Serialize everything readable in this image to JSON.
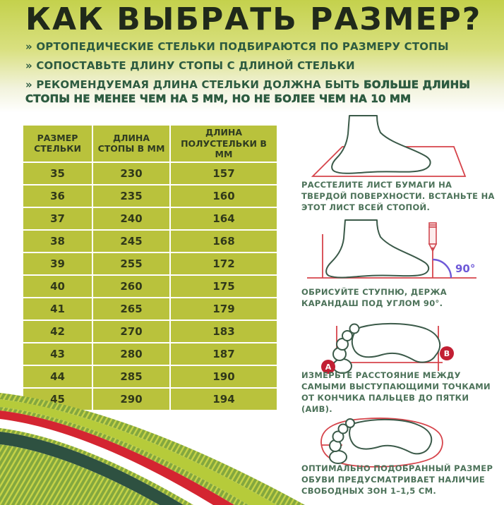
{
  "header": {
    "title": "КАК ВЫБРАТЬ РАЗМЕР?",
    "bullets": [
      {
        "marker": "»",
        "text": "ОРТОПЕДИЧЕСКИЕ СТЕЛЬКИ ПОДБИРАЮТСЯ ПО РАЗМЕРУ СТОПЫ"
      },
      {
        "marker": "»",
        "text": "СОПОСТАВЬТЕ ДЛИНУ СТОПЫ С ДЛИНОЙ СТЕЛЬКИ"
      },
      {
        "marker": "»",
        "text": "РЕКОМЕНДУЕМАЯ ДЛИНА СТЕЛЬКИ ДОЛЖНА БЫТЬ",
        "bold_text": "БОЛЬШЕ ДЛИНЫ СТОПЫ НЕ МЕНЕЕ ЧЕМ НА 5 ММ, НО НЕ БОЛЕЕ ЧЕМ НА 10 ММ"
      }
    ]
  },
  "size_table": {
    "columns": [
      "РАЗМЕР СТЕЛЬКИ",
      "ДЛИНА СТОПЫ В ММ",
      "ДЛИНА ПОЛУСТЕЛЬКИ В ММ"
    ],
    "rows": [
      [
        "35",
        "230",
        "157"
      ],
      [
        "36",
        "235",
        "160"
      ],
      [
        "37",
        "240",
        "164"
      ],
      [
        "38",
        "245",
        "168"
      ],
      [
        "39",
        "255",
        "172"
      ],
      [
        "40",
        "260",
        "175"
      ],
      [
        "41",
        "265",
        "179"
      ],
      [
        "42",
        "270",
        "183"
      ],
      [
        "43",
        "280",
        "187"
      ],
      [
        "44",
        "285",
        "190"
      ],
      [
        "45",
        "290",
        "194"
      ]
    ]
  },
  "steps": [
    {
      "icon": "foot-on-paper-icon",
      "text": "РАССТЕЛИТЕ ЛИСТ БУМАГИ НА ТВЕРДОЙ ПОВЕРХНОСТИ. ВСТАНЬТЕ НА ЭТОТ ЛИСТ ВСЕЙ СТОПОЙ."
    },
    {
      "icon": "foot-pencil-90-icon",
      "text": "ОБРИСУЙТЕ СТУПНЮ, ДЕРЖА КАРАНДАШ ПОД УГЛОМ 90°.",
      "angle_label": "90°"
    },
    {
      "icon": "footprint-measure-ab-icon",
      "text": "ИЗМЕРЬТЕ РАССТОЯНИЕ МЕЖДУ САМЫМИ ВЫСТУПАЮЩИМИ ТОЧКАМИ ОТ КОНЧИКА ПАЛЬЦЕВ ДО ПЯТКИ (АИВ).",
      "point_a": "А",
      "point_b": "В"
    },
    {
      "icon": "footprint-insole-icon",
      "text": "ОПТИМАЛЬНО ПОДОБРАННЫЙ РАЗМЕР ОБУВИ ПРЕДУСМАТРИВАЕТ НАЛИЧИЕ СВОБОДНЫХ ЗОН 1–1,5 СМ."
    }
  ],
  "colors": {
    "header_gradient_top": "#c4d14c",
    "title_text": "#20291a",
    "bullet_text": "#2d5b40",
    "table_background": "#b9c23c",
    "table_text": "#31391a",
    "step_text": "#4c7259",
    "foot_outline": "#3b5a49",
    "guide_red": "#d6444b",
    "badge_red": "#c21f33",
    "angle_purple": "#6e59d8",
    "wave_green": "#83a73e",
    "wave_hatch": "#c6d348",
    "wave_light": "#b6cb3a",
    "wave_red": "#d42531",
    "wave_dark": "#2e5141"
  }
}
